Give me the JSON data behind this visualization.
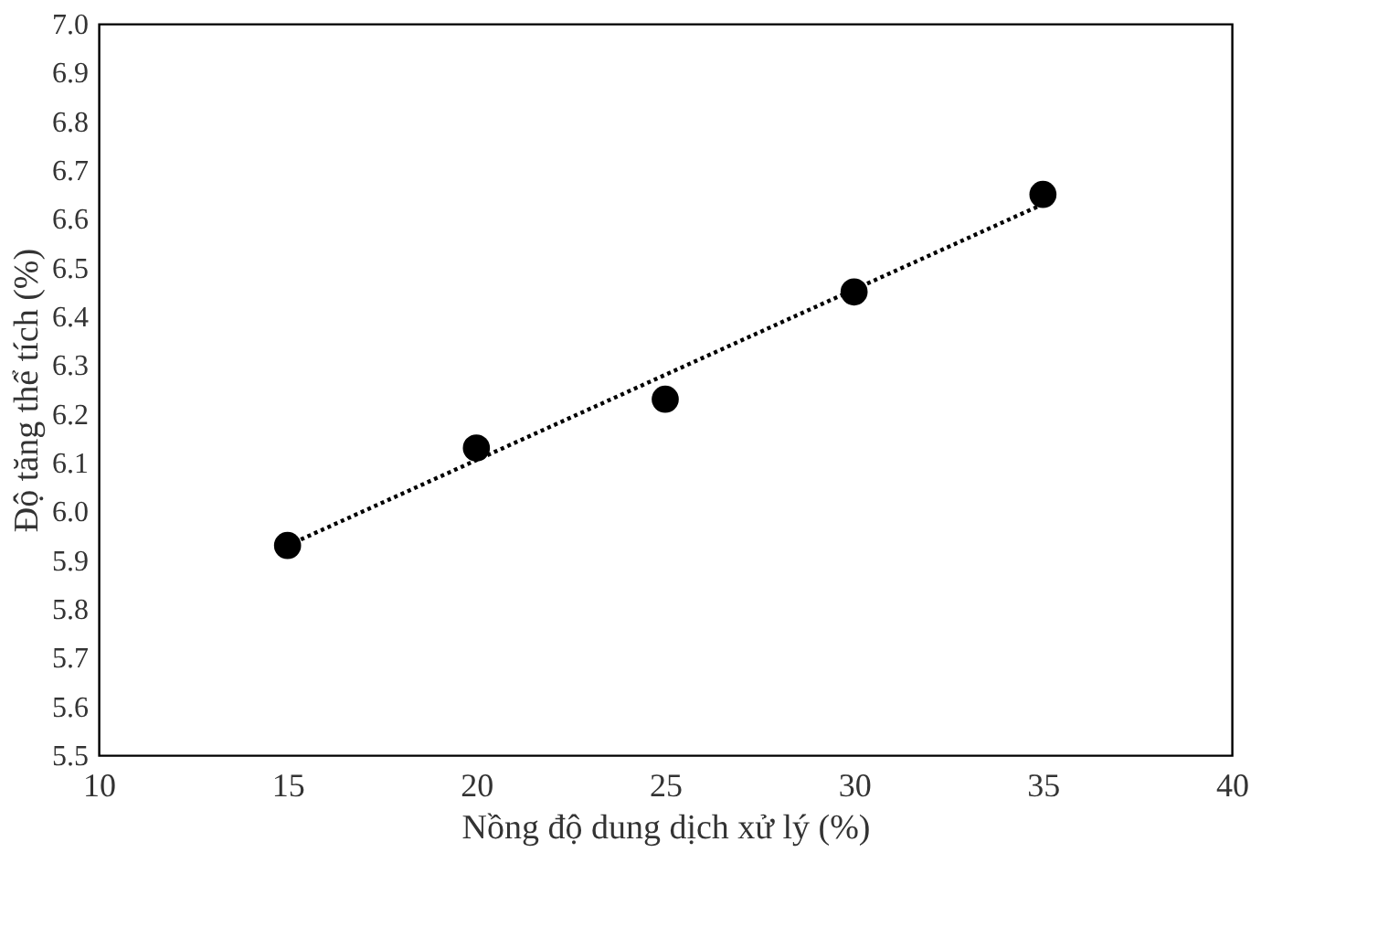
{
  "chart_data": {
    "type": "scatter",
    "xlabel": "Nồng độ dung dịch xử lý (%)",
    "ylabel": "Độ tăng thể tích (%)",
    "xlim": [
      10,
      40
    ],
    "xticks": [
      10,
      15,
      20,
      25,
      30,
      35,
      40
    ],
    "ylim": [
      5.5,
      7.0
    ],
    "yticks": [
      {
        "value": 5.5,
        "label": "5.5"
      },
      5.6,
      5.7,
      5.8,
      5.9,
      {
        "value": 6.0,
        "label": "6.0"
      },
      6.1,
      6.2,
      6.3,
      6.4,
      6.5,
      6.6,
      6.7,
      6.8,
      6.9,
      {
        "value": 7.0,
        "label": "7.0"
      }
    ],
    "marker": "circle",
    "series": [
      {
        "color": "#000000",
        "x": [
          15,
          20,
          25,
          30,
          35
        ],
        "values": [
          5.93,
          6.13,
          6.23,
          6.45,
          6.65
        ]
      },
      {
        "type": "line",
        "color": "#000000",
        "line_style": "dotted",
        "marker": "none",
        "x": [
          15,
          35
        ],
        "values": [
          5.93,
          6.63
        ]
      }
    ]
  }
}
